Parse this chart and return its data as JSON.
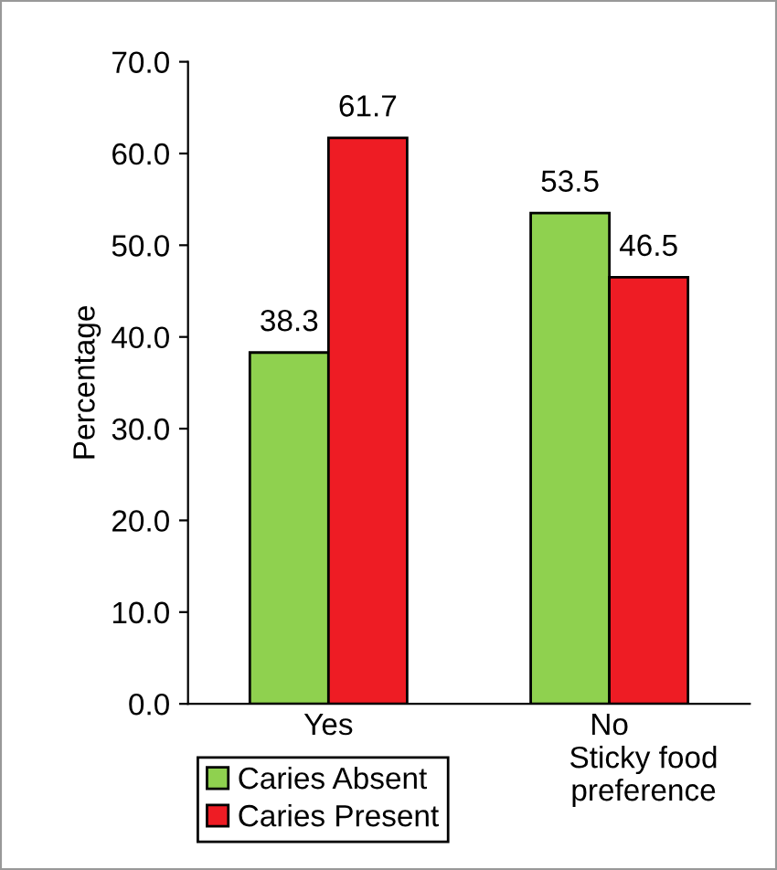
{
  "chart_data": {
    "type": "bar",
    "xlabel": "Sticky food preference",
    "ylabel": "Percentage",
    "categories": [
      "Yes",
      "No"
    ],
    "series": [
      {
        "name": "Caries Absent",
        "color": "#8fd14f",
        "values": [
          38.3,
          53.5
        ]
      },
      {
        "name": "Caries Present",
        "color": "#ee1c24",
        "values": [
          61.7,
          46.5
        ]
      }
    ],
    "ylim": [
      0,
      70
    ],
    "yticks": [
      {
        "value": 0,
        "label": "0.0"
      },
      {
        "value": 10,
        "label": "10.0"
      },
      {
        "value": 20,
        "label": "20.0"
      },
      {
        "value": 30,
        "label": "30.0"
      },
      {
        "value": 40,
        "label": "40.0"
      },
      {
        "value": 50,
        "label": "50.0"
      },
      {
        "value": 60,
        "label": "60.0"
      },
      {
        "value": 70,
        "label": "70.0"
      }
    ],
    "data_labels": true,
    "legend": "bottom left",
    "grid": false
  }
}
